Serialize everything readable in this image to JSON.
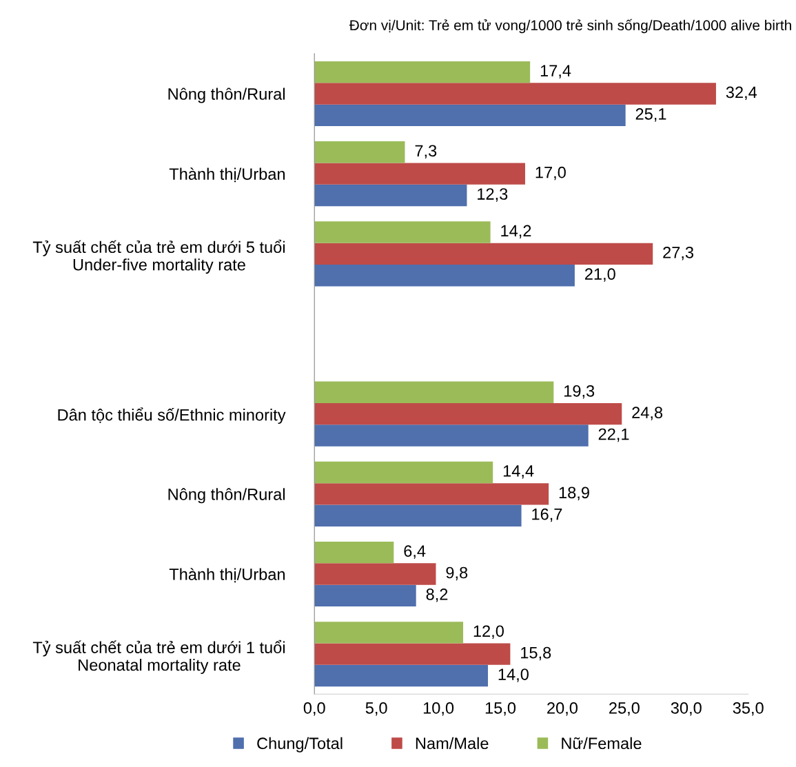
{
  "chart_data": {
    "type": "bar",
    "orientation": "horizontal",
    "annotations": [
      "Đơn vị/Unit: Trẻ em tử vong/1000 trẻ sinh sống/Death/1000 alive birth"
    ],
    "categories": [
      "Nông thôn/Rural",
      "Thành thị/Urban",
      "Tỷ suất chết của trẻ em dưới 5 tuổi\nUnder-five mortality rate",
      null,
      "Dân tộc thiểu số/Ethnic minority",
      "Nông thôn/Rural",
      "Thành thị/Urban",
      "Tỷ suất chết của trẻ em dưới 1 tuổi\nNeonatal mortality rate"
    ],
    "series": [
      {
        "name": "Chung/Total",
        "color": "#4f6fad",
        "values": [
          25.1,
          12.3,
          21.0,
          null,
          22.1,
          16.7,
          8.2,
          14.0
        ],
        "value_labels": [
          "25,1",
          "12,3",
          "21,0",
          null,
          "22,1",
          "16,7",
          "8,2",
          "14,0"
        ]
      },
      {
        "name": "Nam/Male",
        "color": "#be4b48",
        "values": [
          32.4,
          17.0,
          27.3,
          null,
          24.8,
          18.9,
          9.8,
          15.8
        ],
        "value_labels": [
          "32,4",
          "17,0",
          "27,3",
          null,
          "24,8",
          "18,9",
          "9,8",
          "15,8"
        ]
      },
      {
        "name": "Nữ/Female",
        "color": "#9bbb59",
        "values": [
          17.4,
          7.3,
          14.2,
          null,
          19.3,
          14.4,
          6.4,
          12.0
        ],
        "value_labels": [
          "17,4",
          "7,3",
          "14,2",
          null,
          "19,3",
          "14,4",
          "6,4",
          "12,0"
        ]
      }
    ],
    "xlim": [
      0,
      35
    ],
    "xticks": [
      {
        "value": 0,
        "label": "0,0"
      },
      {
        "value": 5,
        "label": "5,0"
      },
      {
        "value": 10,
        "label": "10,0"
      },
      {
        "value": 15,
        "label": "15,0"
      },
      {
        "value": 20,
        "label": "20,0"
      },
      {
        "value": 25,
        "label": "25,0"
      },
      {
        "value": 30,
        "label": "30,0"
      },
      {
        "value": 35,
        "label": "35,0"
      }
    ],
    "grid": false,
    "legend": "bottom"
  }
}
